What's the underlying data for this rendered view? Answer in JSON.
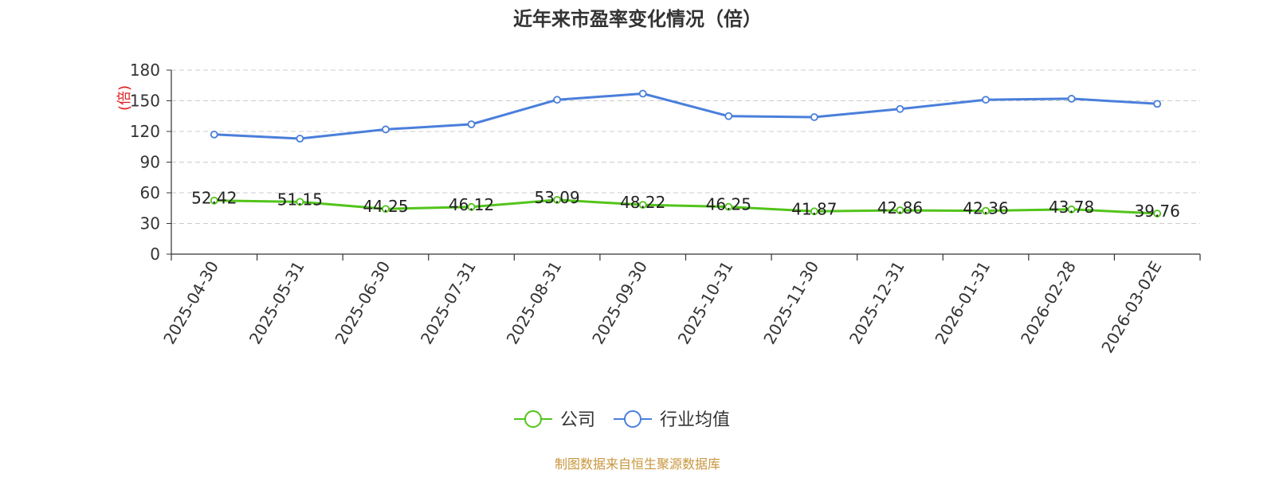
{
  "chart_data": {
    "type": "line",
    "title": "近年来市盈率变化情况（倍）",
    "ylabel": "(倍)",
    "ylim": [
      0,
      180
    ],
    "yticks": [
      0,
      30,
      60,
      90,
      120,
      150,
      180
    ],
    "grid": true,
    "legend_position": "bottom-center",
    "categories": [
      "2025-04-30",
      "2025-05-31",
      "2025-06-30",
      "2025-07-31",
      "2025-08-31",
      "2025-09-30",
      "2025-10-31",
      "2025-11-30",
      "2025-12-31",
      "2026-01-31",
      "2026-02-28",
      "2026-03-02E"
    ],
    "series": [
      {
        "name": "公司",
        "color": "#52c41a",
        "values": [
          52.42,
          51.15,
          44.25,
          46.12,
          53.09,
          48.22,
          46.25,
          41.87,
          42.86,
          42.36,
          43.78,
          39.76
        ],
        "labels": [
          "52.42",
          "51.15",
          "44.25",
          "46.12",
          "53.09",
          "48.22",
          "46.25",
          "41.87",
          "42.86",
          "42.36",
          "43.78",
          "39.76"
        ]
      },
      {
        "name": "行业均值",
        "color": "#4a7fdb",
        "values": [
          117,
          113,
          122,
          127,
          151,
          157,
          135,
          134,
          142,
          151,
          152,
          147
        ]
      }
    ],
    "ylabel_color": "#e02020"
  },
  "footer": {
    "source": "制图数据来自恒生聚源数据库",
    "source_color": "#c8963c"
  }
}
